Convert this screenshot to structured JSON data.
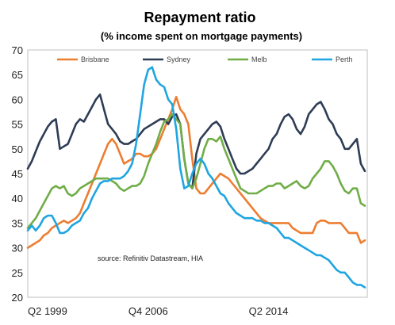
{
  "chart_data": {
    "type": "line",
    "title": "Repayment ratio",
    "subtitle": "(%  income spent  on mortgage payments)",
    "ylim": [
      20,
      70
    ],
    "yticks": [
      20,
      25,
      30,
      35,
      40,
      45,
      50,
      55,
      60,
      65,
      70
    ],
    "x_tick_labels": [
      {
        "label": "Q2 1999",
        "index": 0
      },
      {
        "label": "Q4 2006",
        "index": 30
      },
      {
        "label": "Q2 2014",
        "index": 60
      }
    ],
    "x_count": 85,
    "grid": false,
    "legend_position": "top",
    "source_note": "source:  Refinitiv Datastream,  HIA",
    "series": [
      {
        "name": "Brisbane",
        "color": "#ED7D31",
        "values": [
          30,
          30.5,
          31,
          31.5,
          32.5,
          33,
          34,
          34.5,
          35,
          35.5,
          35,
          35.5,
          36,
          37,
          39,
          41,
          43,
          45,
          47,
          49,
          51,
          52,
          51,
          49,
          47,
          47.5,
          48,
          49,
          49,
          48.5,
          48.5,
          49,
          50,
          52,
          54,
          56,
          58,
          60.5,
          58,
          57,
          55,
          48,
          42,
          41,
          41,
          42,
          43,
          44,
          45,
          44.5,
          44,
          43,
          42,
          41,
          40,
          39,
          38,
          37,
          36,
          35.5,
          35,
          35,
          35,
          35,
          35,
          35,
          34,
          33.5,
          33,
          33,
          33,
          33,
          35,
          35.5,
          35.5,
          35,
          35,
          35,
          35,
          34,
          33,
          33,
          33,
          31,
          31.5
        ]
      },
      {
        "name": "Sydney",
        "color": "#2E3C55",
        "values": [
          46,
          47.5,
          49.5,
          51.5,
          53,
          54.5,
          55.5,
          56,
          50,
          50.5,
          51,
          53,
          55,
          56,
          55.5,
          57,
          58.5,
          60,
          61,
          58,
          55,
          54,
          53,
          51.5,
          51,
          51,
          51.5,
          52,
          53,
          54,
          54.5,
          55,
          55.5,
          56,
          56,
          55,
          56.5,
          57,
          55,
          48,
          43,
          42,
          49,
          52,
          53,
          54,
          55,
          55.5,
          54.5,
          52,
          50,
          48,
          46,
          45,
          45,
          45.5,
          46,
          47,
          48,
          49,
          50,
          52,
          53,
          55,
          56.5,
          57,
          56,
          54,
          53,
          54.5,
          57,
          58,
          59,
          59.5,
          58,
          56,
          55,
          53,
          52,
          50,
          50,
          51,
          52,
          47,
          45.5
        ]
      },
      {
        "name": "Melb",
        "color": "#70AD47",
        "values": [
          34,
          35,
          36,
          37.5,
          39,
          40.5,
          42,
          42.5,
          42,
          42.5,
          41,
          40.5,
          41,
          42,
          42.5,
          43,
          43.5,
          44,
          44,
          44,
          44,
          43.5,
          43,
          42,
          41.5,
          42,
          42.5,
          42.5,
          43,
          44.5,
          47,
          49,
          51,
          53.5,
          55.5,
          56,
          57,
          56,
          55,
          48,
          43,
          42,
          44,
          47,
          50,
          52,
          52,
          51.5,
          52.5,
          50,
          48,
          46,
          44,
          42,
          41.5,
          41,
          41,
          41,
          41.5,
          42,
          42.5,
          42.5,
          43,
          43,
          42,
          42.5,
          43,
          43.5,
          42.5,
          42,
          42.5,
          44,
          45,
          46,
          47.5,
          47.5,
          46.5,
          45,
          43,
          41.5,
          41,
          42,
          42,
          39,
          38.5
        ]
      },
      {
        "name": "Perth",
        "color": "#1FA5E0",
        "values": [
          33.5,
          34.5,
          33.5,
          34.5,
          36,
          36.5,
          36.5,
          35,
          33,
          33,
          33.5,
          34.5,
          35,
          35.5,
          37,
          38,
          40,
          41.5,
          43,
          43.5,
          43.5,
          44,
          44,
          44,
          44.5,
          45.5,
          47,
          51,
          57,
          63,
          66,
          66.5,
          64,
          63,
          62.5,
          60,
          59,
          54,
          46,
          42,
          42.5,
          45,
          47,
          48,
          47,
          45,
          44,
          42.5,
          41,
          40.5,
          39,
          38,
          37,
          36.5,
          36,
          36,
          36,
          35.5,
          35.5,
          35,
          35,
          34.5,
          34,
          33,
          32,
          32,
          31.5,
          31,
          30.5,
          30,
          29.5,
          29,
          28.5,
          28.5,
          28,
          27.5,
          26.5,
          25.5,
          25,
          25,
          24,
          23,
          22.5,
          22.5,
          22
        ]
      }
    ]
  }
}
